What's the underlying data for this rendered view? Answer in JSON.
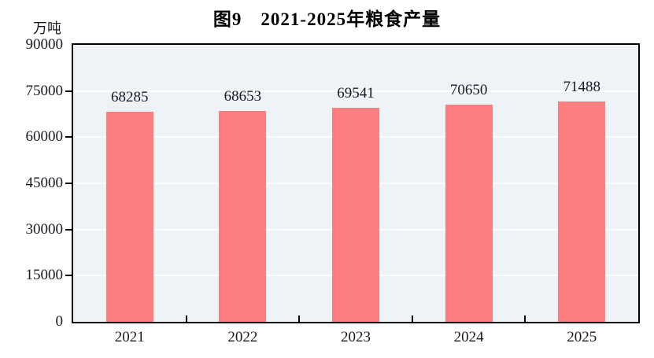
{
  "chart_data": {
    "type": "bar",
    "title": "图9　2021-2025年粮食产量",
    "unit_label": "万吨",
    "categories": [
      "2021",
      "2022",
      "2023",
      "2024",
      "2025"
    ],
    "values": [
      68285,
      68653,
      69541,
      70650,
      71488
    ],
    "data_labels": [
      "68285",
      "68653",
      "69541",
      "70650",
      "71488"
    ],
    "xlabel": "",
    "ylabel": "万吨",
    "ylim": [
      0,
      90000
    ],
    "yticks": [
      0,
      15000,
      30000,
      45000,
      60000,
      75000,
      90000
    ],
    "grid": true,
    "legend": "none",
    "colors": {
      "bar": "#FC7E7E",
      "plot_background": "#EDF3F7",
      "gridline": "#FFFFFF",
      "axis": "#000000",
      "text": "#1A1A24"
    }
  }
}
